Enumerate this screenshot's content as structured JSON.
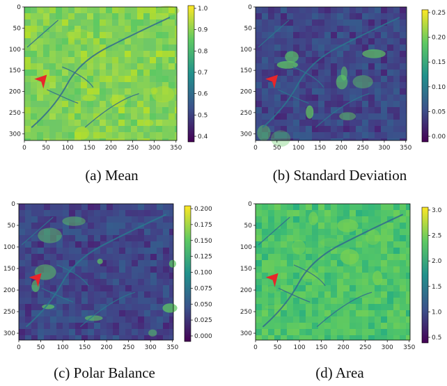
{
  "panels": [
    {
      "caption": "(a) Mean",
      "x_ticks": [
        "0",
        "50",
        "100",
        "150",
        "200",
        "250",
        "300",
        "350"
      ],
      "y_ticks": [
        "0",
        "50",
        "100",
        "150",
        "200",
        "250",
        "300"
      ],
      "colorbar_ticks": [
        "1.0",
        "0.9",
        "0.8",
        "0.7",
        "0.6",
        "0.5",
        "0.4"
      ],
      "palette": "high"
    },
    {
      "caption": "(b) Standard Deviation",
      "x_ticks": [
        "0",
        "50",
        "100",
        "150",
        "200",
        "250",
        "300",
        "350"
      ],
      "y_ticks": [
        "0",
        "50",
        "100",
        "150",
        "200",
        "250",
        "300"
      ],
      "colorbar_ticks": [
        "0.25",
        "0.20",
        "0.15",
        "0.10",
        "0.05",
        "0.00"
      ],
      "palette": "low"
    },
    {
      "caption": "(c) Polar Balance",
      "x_ticks": [
        "0",
        "50",
        "100",
        "150",
        "200",
        "250",
        "300",
        "350"
      ],
      "y_ticks": [
        "0",
        "50",
        "100",
        "150",
        "200",
        "250",
        "300"
      ],
      "colorbar_ticks": [
        "0.200",
        "0.175",
        "0.150",
        "0.125",
        "0.100",
        "0.075",
        "0.050",
        "0.025",
        "0.000"
      ],
      "palette": "low"
    },
    {
      "caption": "(d) Area",
      "x_ticks": [
        "0",
        "50",
        "100",
        "150",
        "200",
        "250",
        "300",
        "350"
      ],
      "y_ticks": [
        "0",
        "50",
        "100",
        "150",
        "200",
        "250",
        "300"
      ],
      "colorbar_ticks": [
        "3.0",
        "2.5",
        "2.0",
        "1.5",
        "1.0",
        "0.5"
      ],
      "palette": "mid"
    }
  ],
  "colors": {
    "viridis_dark": "#440154",
    "viridis_blue": "#3b528b",
    "viridis_teal": "#21918c",
    "viridis_green": "#5ec962",
    "viridis_yellow": "#fde725",
    "marker": "#e8262a"
  },
  "marker_icon": "red-arrowhead-icon"
}
